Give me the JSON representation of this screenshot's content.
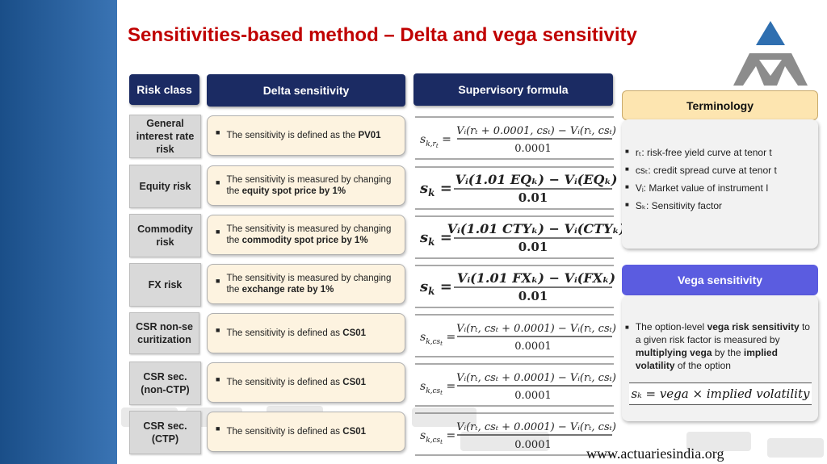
{
  "title": "Sensitivities-based method – Delta and vega sensitivity",
  "headers": {
    "risk_class": "Risk class",
    "delta_sensitivity": "Delta sensitivity",
    "supervisory_formula": "Supervisory formula"
  },
  "rows": [
    {
      "risk_class": "General interest rate risk",
      "pre": "The sensitivity is defined as the ",
      "bold": "PV01",
      "post": "",
      "formula": {
        "lhs": "s",
        "lhs_sub": "k,r",
        "lhs_subsub": "t",
        "num": "V",
        "den": "0.0001"
      }
    },
    {
      "risk_class": "Equity risk",
      "pre": "The sensitivity is measured by changing the ",
      "bold": "equity spot price by 1%",
      "post": "",
      "formula": {
        "lhs": "s",
        "lhs_sub": "k",
        "lhs_subsub": "",
        "num": "",
        "den": "0.01"
      }
    },
    {
      "risk_class": "Commodity risk",
      "pre": "The sensitivity is measured by changing the ",
      "bold": "commodity spot price by 1%",
      "post": "",
      "formula": {
        "lhs": "s",
        "lhs_sub": "k",
        "lhs_subsub": "",
        "num": "",
        "den": "0.01"
      }
    },
    {
      "risk_class": "FX risk",
      "pre": "The sensitivity is measured by changing the ",
      "bold": "exchange rate by 1%",
      "post": "",
      "formula": {
        "lhs": "s",
        "lhs_sub": "k",
        "lhs_subsub": "",
        "num": "",
        "den": "0.01"
      }
    },
    {
      "risk_class": "CSR non-securitization",
      "pre": "The sensitivity is defined as ",
      "bold": "CS01",
      "post": "",
      "formula": {
        "lhs": "s",
        "lhs_sub": "k,cs",
        "lhs_subsub": "t",
        "num": "",
        "den": "0.0001"
      }
    },
    {
      "risk_class": "CSR sec. (non-CTP)",
      "pre": "The sensitivity is defined as ",
      "bold": "CS01",
      "post": "",
      "formula": {
        "lhs": "s",
        "lhs_sub": "k,cs",
        "lhs_subsub": "t",
        "num": "",
        "den": "0.0001"
      }
    },
    {
      "risk_class": "CSR sec. (CTP)",
      "pre": "The sensitivity is defined as ",
      "bold": "CS01",
      "post": "",
      "formula": {
        "lhs": "s",
        "lhs_sub": "k,cs",
        "lhs_subsub": "t",
        "num": "",
        "den": "0.0001"
      }
    }
  ],
  "formulas": {
    "ir_num": "Vᵢ(rₜ + 0.0001, csₜ) − Vᵢ(rₜ, csₜ)",
    "eq_num": "Vᵢ(1.01 EQₖ) − Vᵢ(EQₖ)",
    "cty_num": "Vᵢ(1.01 CTYₖ) − Vᵢ(CTYₖ)",
    "fx_num": "Vᵢ(1.01 FXₖ) − Vᵢ(FXₖ)",
    "cs_num": "Vᵢ(rₜ, csₜ + 0.0001) − Vᵢ(rₜ, csₜ)"
  },
  "terminology": {
    "header": "Terminology",
    "items": [
      "rₜ: risk-free yield curve at tenor t",
      "csₜ: credit spread curve at tenor t",
      "Vᵢ: Market value of instrument I",
      "Sₖ: Sensitivity factor"
    ]
  },
  "vega": {
    "header": "Vega sensitivity",
    "t1": "The option-level ",
    "b1": "vega risk sensitivity",
    "t2": " to a given risk factor is measured by ",
    "b2": "multiplying vega",
    "t3": " by the ",
    "b3": "implied volatility",
    "t4": " of the option",
    "formula": "sₖ = vega × implied volatility"
  },
  "website": "www.actuariesindia.org",
  "colors": {
    "title": "#c00000",
    "header_bg": "#1b2b63",
    "term_bg": "#fde5b0",
    "vega_bg": "#5b5ce0"
  }
}
